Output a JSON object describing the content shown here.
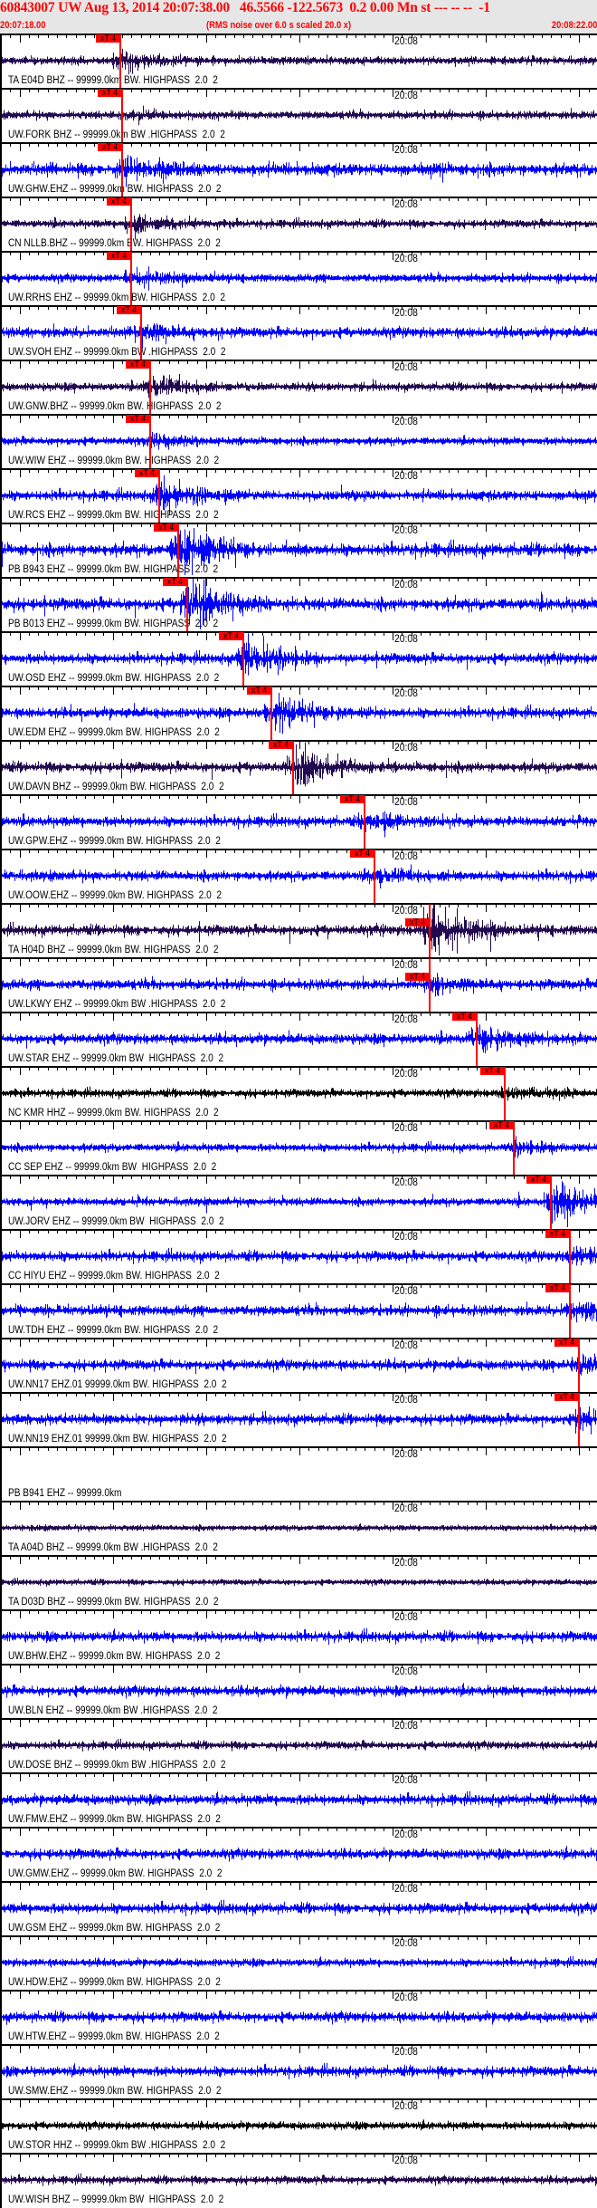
{
  "header": {
    "title": "60843007 UW Aug 13, 2014 20:07:38.00   46.5566 -122.5673  0.2 0.00 Mn st --- -- --  -1",
    "start_time": "20:07:18.00",
    "noise_note": "(RMS noise over 6.0 s scaled 20.0 x)",
    "end_time": "20:08:22.00"
  },
  "axis": {
    "start_seconds": 0,
    "end_seconds": 64,
    "minute_tick_label": "20:08",
    "minute_tick_seconds": 42,
    "major_tick_every_s": 10,
    "minor_tick_every_s": 1
  },
  "pick_label": "xT 4",
  "colors": {
    "header_bg": "#e6e6e6",
    "header_text": "#ff0000",
    "pick": "#ff0000",
    "bhz": "#220a50",
    "ehz": "#0000ff",
    "hhz": "#000000"
  },
  "traces": [
    {
      "label": "TA E04D BHZ -- 99999.0km BW. HIGHPASS  2.0  2",
      "color": "#220a50",
      "pick_s": 12.8
    },
    {
      "label": "UW.FORK BHZ -- 99999.0km BW .HIGHPASS  2.0  2",
      "color": "#220a50",
      "pick_s": 13.0
    },
    {
      "label": "UW.GHW.EHZ -- 99999.0km BW. HIGHPASS  2.0  2",
      "color": "#0000ff",
      "pick_s": 13.0
    },
    {
      "label": "CN NLLB.BHZ -- 99999.0km BW. HIGHPASS  2.0  2",
      "color": "#220a50",
      "pick_s": 14.0
    },
    {
      "label": "UW.RRHS EHZ -- 99999.0km BW. HIGHPASS  2.0  2",
      "color": "#0000ff",
      "pick_s": 14.0
    },
    {
      "label": "UW.SVOH EHZ -- 99999.0km BW .HIGHPASS  2.0  2",
      "color": "#0000ff",
      "pick_s": 15.0
    },
    {
      "label": "UW.GNW.BHZ -- 99999.0km BW. HIGHPASS  2.0  2",
      "color": "#220a50",
      "pick_s": 16.0
    },
    {
      "label": "UW.WIW EHZ -- 99999.0km BW. HIGHPASS  2.0  2",
      "color": "#0000ff",
      "pick_s": 16.0
    },
    {
      "label": "UW.RCS EHZ -- 99999.0km BW. HIGHPASS  2.0  2",
      "color": "#0000ff",
      "pick_s": 17.0
    },
    {
      "label": "PB B943 EHZ -- 99999.0km BW. HIGHPASS  2.0  2",
      "color": "#0000ff",
      "pick_s": 19.0
    },
    {
      "label": "PB B013 EHZ -- 99999.0km BW. HIGHPASS  2.0  2",
      "color": "#0000ff",
      "pick_s": 20.0
    },
    {
      "label": "UW.OSD EHZ -- 99999.0km BW. HIGHPASS  2.0  2",
      "color": "#0000ff",
      "pick_s": 26.0
    },
    {
      "label": "UW.EDM EHZ -- 99999.0km BW. HIGHPASS  2.0  2",
      "color": "#0000ff",
      "pick_s": 29.0
    },
    {
      "label": "UW.DAVN BHZ -- 99999.0km BW. HIGHPASS  2.0  2",
      "color": "#220a50",
      "pick_s": 31.3
    },
    {
      "label": "UW.GPW.EHZ -- 99999.0km BW. HIGHPASS  2.0  2",
      "color": "#0000ff",
      "pick_s": 39.0
    },
    {
      "label": "UW.OOW.EHZ -- 99999.0km BW. HIGHPASS  2.0  2",
      "color": "#0000ff",
      "pick_s": 40.0
    },
    {
      "label": "TA H04D BHZ -- 99999.0km BW. HIGHPASS  2.0  2",
      "color": "#220a50",
      "pick_s": 46.0
    },
    {
      "label": "UW.LKWY EHZ -- 99999.0km BW .HIGHPASS  2.0  2",
      "color": "#0000ff",
      "pick_s": 46.0
    },
    {
      "label": "UW.STAR EHZ -- 99999.0km BW  HIGHPASS  2.0  2",
      "color": "#0000ff",
      "pick_s": 51.0
    },
    {
      "label": "NC KMR HHZ -- 99999.0km BW. HIGHPASS  2.0  2",
      "color": "#000000",
      "pick_s": 54.0
    },
    {
      "label": "CC SEP EHZ -- 99999.0km BW  HIGHPASS  2.0  2",
      "color": "#0000ff",
      "pick_s": 55.0
    },
    {
      "label": "UW.JORV EHZ -- 99999.0km BW  HIGHPASS  2.0  2",
      "color": "#0000ff",
      "pick_s": 59.0
    },
    {
      "label": "CC HIYU EHZ -- 99999.0km BW. HIGHPASS  2.0  2",
      "color": "#0000ff",
      "pick_s": 61.0
    },
    {
      "label": "UW.TDH EHZ -- 99999.0km BW. HIGHPASS  2.0  2",
      "color": "#0000ff",
      "pick_s": 61.0
    },
    {
      "label": "UW.NN17 EHZ.01 99999.0km BW. HIGHPASS  2.0  2",
      "color": "#0000ff",
      "pick_s": 62.0
    },
    {
      "label": "UW.NN19 EHZ.01 99999.0km BW. HIGHPASS  2.0  2",
      "color": "#0000ff",
      "pick_s": 62.0
    },
    {
      "label": "PB B941 EHZ -- 99999.0km",
      "color": "#0000ff",
      "pick_s": null,
      "empty": true
    },
    {
      "label": "TA A04D BHZ -- 99999.0km BW .HIGHPASS  2.0  2",
      "color": "#220a50",
      "pick_s": null
    },
    {
      "label": "TA D03D BHZ -- 99999.0km BW. HIGHPASS  2.0  2",
      "color": "#220a50",
      "pick_s": null
    },
    {
      "label": "UW.BHW.EHZ -- 99999.0km BW. HIGHPASS  2.0  2",
      "color": "#0000ff",
      "pick_s": null
    },
    {
      "label": "UW.BLN EHZ -- 99999.0km BW .HIGHPASS  2.0  2",
      "color": "#0000ff",
      "pick_s": null
    },
    {
      "label": "UW.DOSE BHZ -- 99999.0km BW .HIGHPASS  2.0  2",
      "color": "#220a50",
      "pick_s": null
    },
    {
      "label": "UW.FMW.EHZ -- 99999.0km BW. HIGHPASS  2.0  2",
      "color": "#0000ff",
      "pick_s": null
    },
    {
      "label": "UW.GMW.EHZ -- 99999.0km BW. HIGHPASS  2.0  2",
      "color": "#0000ff",
      "pick_s": null
    },
    {
      "label": "UW.GSM EHZ -- 99999.0km BW. HIGHPASS  2.0  2",
      "color": "#0000ff",
      "pick_s": null
    },
    {
      "label": "UW.HDW.EHZ -- 99999.0km BW. HIGHPASS  2.0  2",
      "color": "#0000ff",
      "pick_s": null
    },
    {
      "label": "UW.HTW.EHZ -- 99999.0km BW. HIGHPASS  2.0  2",
      "color": "#0000ff",
      "pick_s": null
    },
    {
      "label": "UW.SMW.EHZ -- 99999.0km BW. HIGHPASS  2.0  2",
      "color": "#0000ff",
      "pick_s": null
    },
    {
      "label": "UW.STOR HHZ -- 99999.0km BW .HIGHPASS  2.0  2",
      "color": "#000000",
      "pick_s": null
    },
    {
      "label": "UW.WISH BHZ -- 99999.0km BW  HIGHPASS  2.0  2",
      "color": "#220a50",
      "pick_s": null
    }
  ]
}
